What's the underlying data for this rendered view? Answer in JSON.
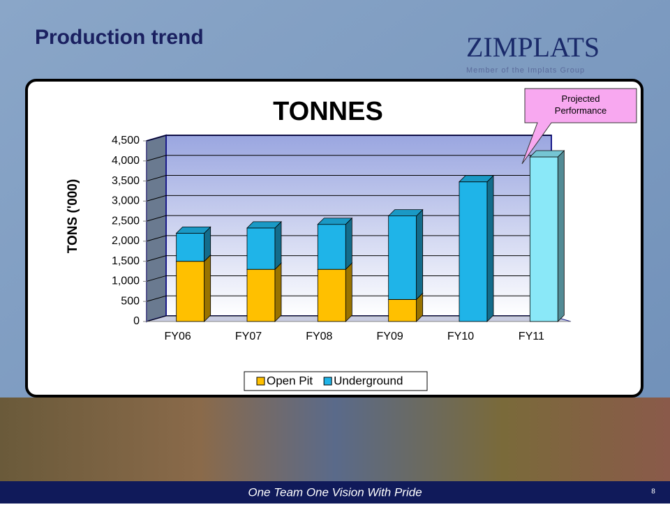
{
  "slide": {
    "title": "Production trend",
    "logo": "ZIMPLATS",
    "logo_subtitle": "Member of the Implats Group",
    "footer": "One Team One Vision With Pride",
    "page_number": "8"
  },
  "chart_data": {
    "type": "stacked-bar-3d",
    "title": "TONNES",
    "y_label": "TONS ('000)",
    "categories": [
      "FY06",
      "FY07",
      "FY08",
      "FY09",
      "FY10",
      "FY11"
    ],
    "series": [
      {
        "name": "Open Pit",
        "color": "#ffc000",
        "values": [
          1500,
          1300,
          1300,
          550,
          0,
          0
        ]
      },
      {
        "name": "Underground",
        "color": "#1fb4e8",
        "values": [
          700,
          1030,
          1120,
          2080,
          3480,
          4100
        ],
        "colors": [
          "#1fb4e8",
          "#1fb4e8",
          "#1fb4e8",
          "#1fb4e8",
          "#1fb4e8",
          "#8ae8f8"
        ]
      }
    ],
    "ylim": [
      0,
      4500
    ],
    "yticks": [
      0,
      500,
      {
        "value": 1000,
        "label": "1,000"
      },
      {
        "value": 1500,
        "label": "1,500"
      },
      {
        "value": 2000,
        "label": "2,000"
      },
      {
        "value": 2500,
        "label": "2,500"
      },
      {
        "value": 3000,
        "label": "3,000"
      },
      {
        "value": 3500,
        "label": "3,500"
      },
      {
        "value": 4000,
        "label": "4,000"
      },
      {
        "value": 4500,
        "label": "4,500"
      }
    ],
    "grid": true,
    "legend": "bottom",
    "annotation": "Projected Performance"
  }
}
